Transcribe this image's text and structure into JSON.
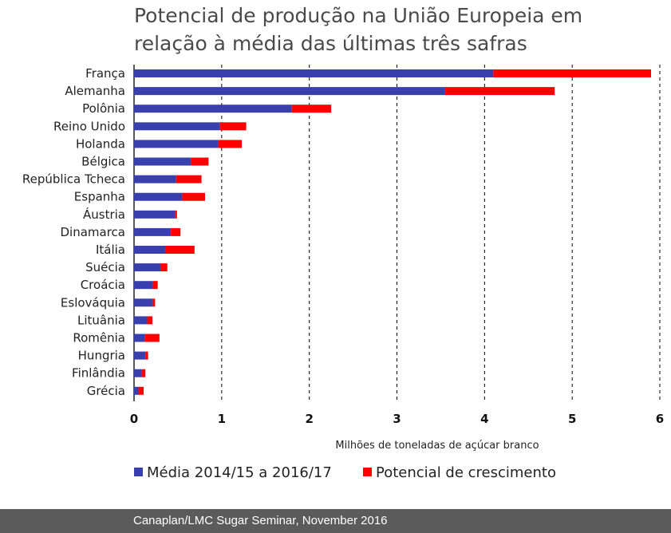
{
  "title": "Potencial de produção na União Europeia em relação à média das últimas três safras",
  "footer": "Canaplan/LMC Sugar Seminar, November 2016",
  "colors": {
    "base": "#3a3fae",
    "growth": "#ff0000",
    "grid": "#000000"
  },
  "chart_data": {
    "type": "bar",
    "orientation": "horizontal",
    "stacked": true,
    "categories": [
      "França",
      "Alemanha",
      "Polônia",
      "Reino Unido",
      "Holanda",
      "Bélgica",
      "República Tcheca",
      "Espanha",
      "Áustria",
      "Dinamarca",
      "Itália",
      "Suécia",
      "Croácia",
      "Eslováquia",
      "Lituânia",
      "Romênia",
      "Hungria",
      "Finlândia",
      "Grécia"
    ],
    "series": [
      {
        "name": "Média 2014/15 a 2016/17",
        "values": [
          4.1,
          3.55,
          1.8,
          0.98,
          0.96,
          0.65,
          0.48,
          0.55,
          0.47,
          0.42,
          0.36,
          0.3,
          0.21,
          0.21,
          0.15,
          0.12,
          0.13,
          0.09,
          0.05
        ]
      },
      {
        "name": "Potencial de crescimento",
        "values": [
          1.8,
          1.25,
          0.45,
          0.3,
          0.27,
          0.2,
          0.29,
          0.26,
          0.02,
          0.11,
          0.33,
          0.08,
          0.06,
          0.03,
          0.06,
          0.17,
          0.03,
          0.04,
          0.06
        ]
      }
    ],
    "xlim": [
      0,
      6
    ],
    "xticks": [
      "0",
      "1",
      "2",
      "3",
      "4",
      "5",
      "6"
    ],
    "xlabel": "Milhões de toneladas de açúcar branco",
    "ylabel": "",
    "grid": "vertical dashed",
    "legend_position": "bottom"
  }
}
